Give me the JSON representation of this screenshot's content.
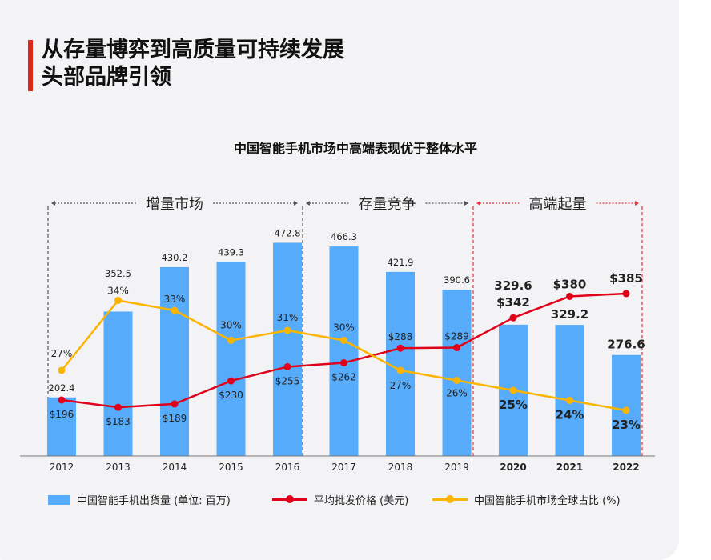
{
  "header": {
    "title_line1": "从存量博弈到高质量可持续发展",
    "title_line2": "头部品牌引领"
  },
  "chart_data": {
    "type": "bar",
    "title": "中国智能手机市场中高端表现优于整体水平",
    "categories": [
      "2012",
      "2013",
      "2014",
      "2015",
      "2016",
      "2017",
      "2018",
      "2019",
      "2020",
      "2021",
      "2022"
    ],
    "highlight_from": "2020",
    "ylim": [
      100,
      500
    ],
    "grid": false,
    "legend_placement": "bottom",
    "series": [
      {
        "name": "中国智能手机出货量 (单位: 百万)",
        "type": "bar",
        "color": "#56acfb",
        "values": [
          202.4,
          352.5,
          430.2,
          439.3,
          472.8,
          466.3,
          421.9,
          390.6,
          329.6,
          329.2,
          276.6
        ]
      },
      {
        "name": "平均批发价格 (美元)",
        "type": "line",
        "color": "#e1001a",
        "values": [
          196,
          183,
          189,
          230,
          255,
          262,
          288,
          289,
          342,
          380,
          385
        ],
        "labels": [
          "$196",
          "$183",
          "$189",
          "$230",
          "$255",
          "$262",
          "$288",
          "$289",
          "$342",
          "$380",
          "$385"
        ]
      },
      {
        "name": "中国智能手机市场全球占比 (%)",
        "type": "line",
        "color": "#fbb400",
        "values": [
          27,
          34,
          33,
          30,
          31,
          30,
          27,
          26,
          25,
          24,
          23
        ],
        "labels": [
          "27%",
          "34%",
          "33%",
          "30%",
          "31%",
          "30%",
          "27%",
          "26%",
          "25%",
          "24%",
          "23%"
        ]
      }
    ],
    "phases": [
      {
        "label": "增量市场",
        "from": "2012",
        "to": "2016",
        "color": "#555555"
      },
      {
        "label": "存量竞争",
        "from": "2017",
        "to": "2019",
        "color": "#555555"
      },
      {
        "label": "高端起量",
        "from": "2020",
        "to": "2022",
        "color": "#e8323c"
      }
    ]
  }
}
